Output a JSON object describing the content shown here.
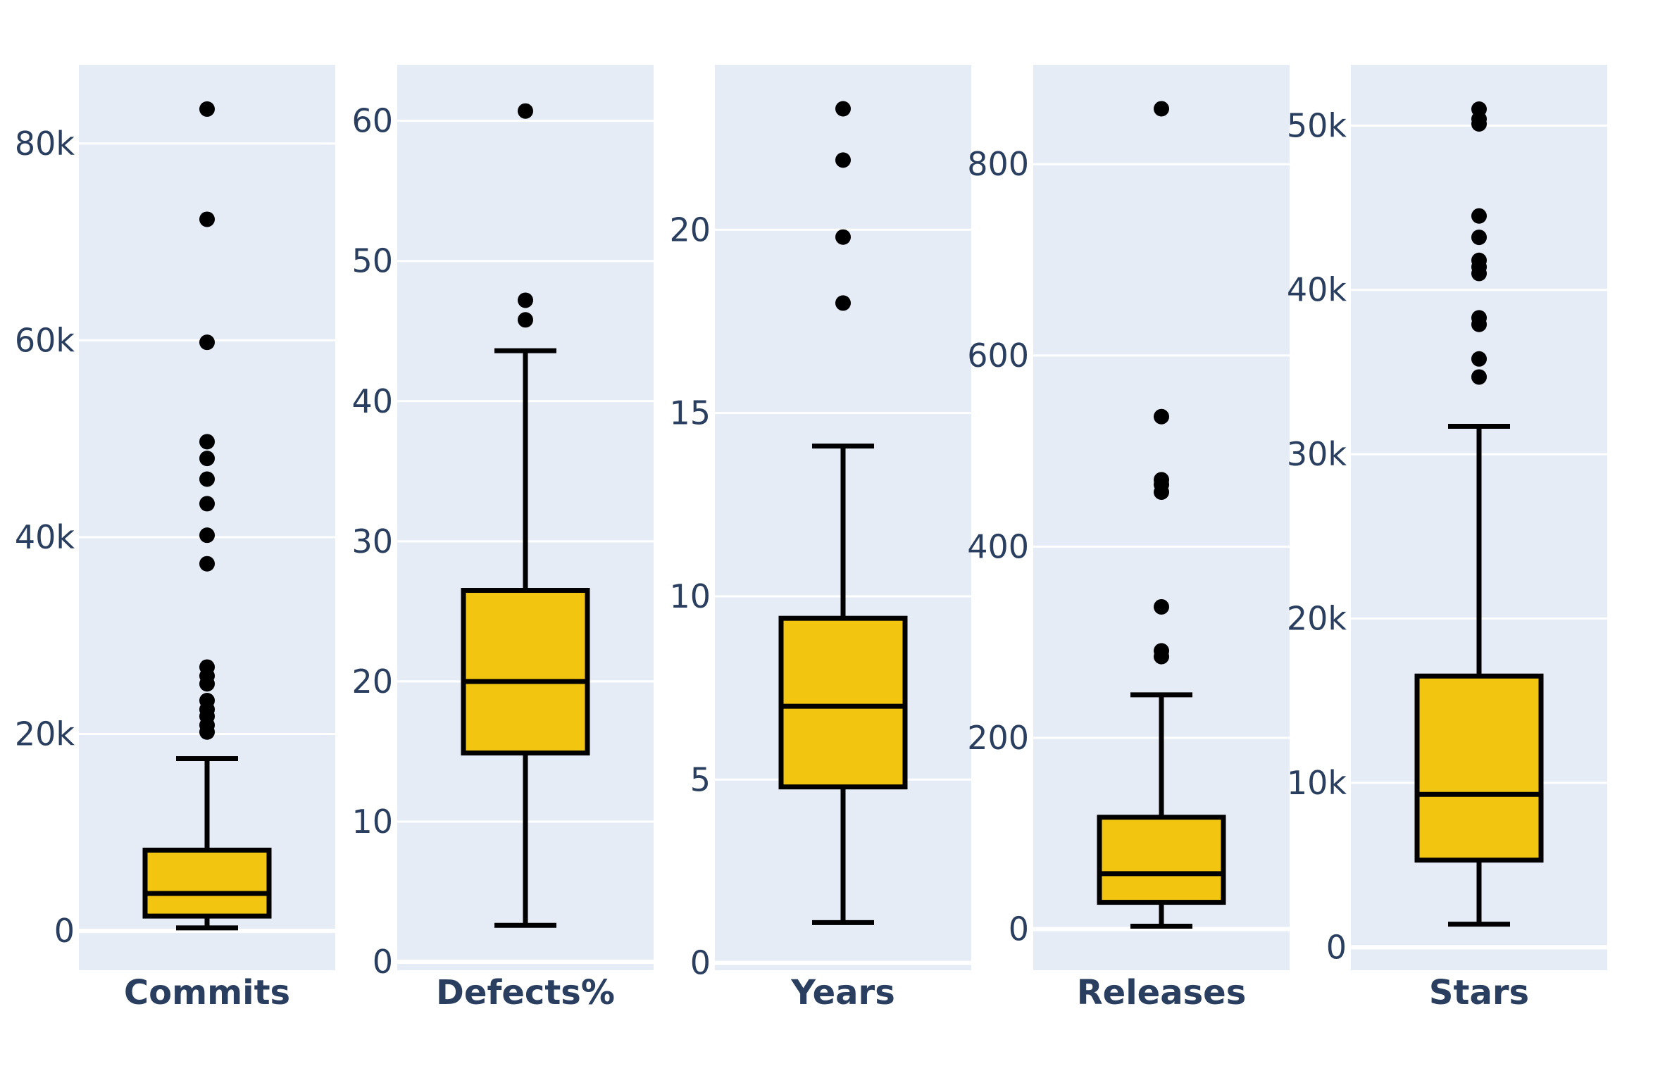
{
  "chart_data": [
    {
      "type": "box",
      "category": "Commits",
      "q1": 1500,
      "median": 3800,
      "q3": 8200,
      "whisker_low": 300,
      "whisker_high": 17500,
      "outliers": [
        83500,
        72300,
        59800,
        49700,
        48000,
        45900,
        43400,
        40200,
        37300,
        26800,
        25900,
        25100,
        23400,
        22500,
        21800,
        20900,
        20200
      ],
      "yrange": [
        -4000,
        88000
      ],
      "yticks": [
        0,
        20000,
        40000,
        60000,
        80000
      ],
      "ytick_labels": [
        "0",
        "20k",
        "40k",
        "60k",
        "80k"
      ]
    },
    {
      "type": "box",
      "category": "Defects%",
      "q1": 14.9,
      "median": 20.0,
      "q3": 26.5,
      "whisker_low": 2.6,
      "whisker_high": 43.6,
      "outliers": [
        60.7,
        47.2,
        45.8
      ],
      "yrange": [
        -0.6,
        64
      ],
      "yticks": [
        0,
        10,
        20,
        30,
        40,
        50,
        60
      ],
      "ytick_labels": [
        "0",
        "10",
        "20",
        "30",
        "40",
        "50",
        "60"
      ]
    },
    {
      "type": "box",
      "category": "Years",
      "q1": 4.8,
      "median": 7.0,
      "q3": 9.4,
      "whisker_low": 1.1,
      "whisker_high": 14.1,
      "outliers": [
        23.3,
        21.9,
        19.8,
        18.0
      ],
      "yrange": [
        -0.2,
        24.5
      ],
      "yticks": [
        0,
        5,
        10,
        15,
        20
      ],
      "ytick_labels": [
        "0",
        "5",
        "10",
        "15",
        "20"
      ]
    },
    {
      "type": "box",
      "category": "Releases",
      "q1": 28,
      "median": 58,
      "q3": 117,
      "whisker_low": 3,
      "whisker_high": 245,
      "outliers": [
        858,
        536,
        470,
        465,
        457,
        337,
        291,
        285
      ],
      "yrange": [
        -43,
        904
      ],
      "yticks": [
        0,
        200,
        400,
        600,
        800
      ],
      "ytick_labels": [
        "0",
        "200",
        "400",
        "600",
        "800"
      ]
    },
    {
      "type": "box",
      "category": "Stars",
      "q1": 5300,
      "median": 9300,
      "q3": 16500,
      "whisker_low": 1400,
      "whisker_high": 31700,
      "outliers": [
        51000,
        50400,
        50100,
        44500,
        43200,
        41800,
        41400,
        41000,
        38300,
        37900,
        35800,
        34700
      ],
      "yrange": [
        -1400,
        53700
      ],
      "yticks": [
        0,
        10000,
        20000,
        30000,
        40000,
        50000
      ],
      "ytick_labels": [
        "0",
        "10k",
        "20k",
        "30k",
        "40k",
        "50k"
      ]
    }
  ],
  "colors": {
    "plot_bg": "#e5ecf6",
    "grid": "#ffffff",
    "box_fill": "#f2c511",
    "line": "#000000",
    "text": "#2a3f5f"
  }
}
